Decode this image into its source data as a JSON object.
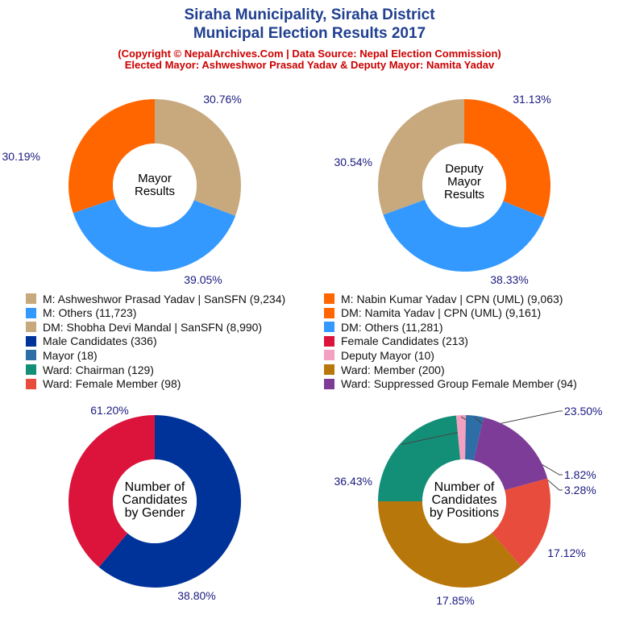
{
  "header": {
    "title_line1": "Siraha Municipality, Siraha District",
    "title_line2": "Municipal Election Results 2017",
    "subtitle_line1": "(Copyright © NepalArchives.Com | Data Source: Nepal Election Commission)",
    "subtitle_line2": "Elected Mayor: Ashweshwor Prasad Yadav & Deputy Mayor: Namita Yadav"
  },
  "legend": {
    "items": [
      {
        "label": "M: Ashweshwor Prasad Yadav | SanSFN (9,234)",
        "color": "#c8a97e"
      },
      {
        "label": "M: Nabin Kumar Yadav | CPN (UML) (9,063)",
        "color": "#ff6600"
      },
      {
        "label": "M: Others (11,723)",
        "color": "#3399ff"
      },
      {
        "label": "DM: Namita Yadav | CPN (UML) (9,161)",
        "color": "#ff6600"
      },
      {
        "label": "DM: Shobha Devi Mandal | SanSFN (8,990)",
        "color": "#c8a97e"
      },
      {
        "label": "DM: Others (11,281)",
        "color": "#3399ff"
      },
      {
        "label": "Male Candidates (336)",
        "color": "#003399"
      },
      {
        "label": "Female Candidates (213)",
        "color": "#dc143c"
      },
      {
        "label": "Mayor (18)",
        "color": "#2e6ea6"
      },
      {
        "label": "Deputy Mayor (10)",
        "color": "#f4a0c0"
      },
      {
        "label": "Ward: Chairman (129)",
        "color": "#148f77"
      },
      {
        "label": "Ward: Member (200)",
        "color": "#b8770b"
      },
      {
        "label": "Ward: Female Member (98)",
        "color": "#e74c3c"
      },
      {
        "label": "Ward: Suppressed Group Female Member (94)",
        "color": "#7d3c98"
      }
    ]
  },
  "chart_data": [
    {
      "type": "pie",
      "center_label": [
        "Mayor",
        "Results"
      ],
      "slices": [
        {
          "label": "M: Ashweshwor Prasad Yadav | SanSFN",
          "value": 9234,
          "percent_label": "30.76%",
          "color": "#c8a97e"
        },
        {
          "label": "M: Others",
          "value": 11723,
          "percent_label": "39.05%",
          "color": "#3399ff"
        },
        {
          "label": "M: Nabin Kumar Yadav | CPN (UML)",
          "value": 9063,
          "percent_label": "30.19%",
          "color": "#ff6600"
        }
      ]
    },
    {
      "type": "pie",
      "center_label": [
        "Deputy",
        "Mayor",
        "Results"
      ],
      "slices": [
        {
          "label": "DM: Namita Yadav | CPN (UML)",
          "value": 9161,
          "percent_label": "31.13%",
          "color": "#ff6600"
        },
        {
          "label": "DM: Others",
          "value": 11281,
          "percent_label": "38.33%",
          "color": "#3399ff"
        },
        {
          "label": "DM: Shobha Devi Mandal | SanSFN",
          "value": 8990,
          "percent_label": "30.54%",
          "color": "#c8a97e"
        }
      ]
    },
    {
      "type": "pie",
      "center_label": [
        "Number of",
        "Candidates",
        "by Gender"
      ],
      "slices": [
        {
          "label": "Male Candidates",
          "value": 336,
          "percent_label": "61.20%",
          "color": "#003399"
        },
        {
          "label": "Female Candidates",
          "value": 213,
          "percent_label": "38.80%",
          "color": "#dc143c"
        }
      ]
    },
    {
      "type": "pie",
      "center_label": [
        "Number of",
        "Candidates",
        "by Positions"
      ],
      "slices": [
        {
          "label": "Ward: Chairman",
          "value": 129,
          "percent_label": "23.50%",
          "color": "#148f77"
        },
        {
          "label": "Deputy Mayor",
          "value": 10,
          "percent_label": "1.82%",
          "color": "#f4a0c0"
        },
        {
          "label": "Mayor",
          "value": 18,
          "percent_label": "3.28%",
          "color": "#2e6ea6"
        },
        {
          "label": "Ward: Suppressed Group Female Member",
          "value": 94,
          "percent_label": "17.12%",
          "color": "#7d3c98"
        },
        {
          "label": "Ward: Female Member",
          "value": 98,
          "percent_label": "17.85%",
          "color": "#e74c3c"
        },
        {
          "label": "Ward: Member",
          "value": 200,
          "percent_label": "36.43%",
          "color": "#b8770b"
        }
      ]
    }
  ]
}
